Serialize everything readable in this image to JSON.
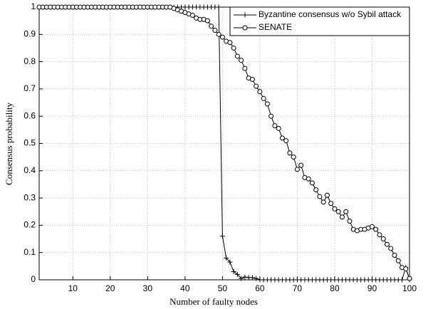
{
  "chart_data": {
    "type": "line",
    "xlabel": "Number of faulty nodes",
    "ylabel": "Consensus probability",
    "x": [
      1,
      2,
      3,
      4,
      5,
      6,
      7,
      8,
      9,
      10,
      11,
      12,
      13,
      14,
      15,
      16,
      17,
      18,
      19,
      20,
      21,
      22,
      23,
      24,
      25,
      26,
      27,
      28,
      29,
      30,
      31,
      32,
      33,
      34,
      35,
      36,
      37,
      38,
      39,
      40,
      41,
      42,
      43,
      44,
      45,
      46,
      47,
      48,
      49,
      50,
      51,
      52,
      53,
      54,
      55,
      56,
      57,
      58,
      59,
      60,
      61,
      62,
      63,
      64,
      65,
      66,
      67,
      68,
      69,
      70,
      71,
      72,
      73,
      74,
      75,
      76,
      77,
      78,
      79,
      80,
      81,
      82,
      83,
      84,
      85,
      86,
      87,
      88,
      89,
      90,
      91,
      92,
      93,
      94,
      95,
      96,
      97,
      98,
      99,
      100
    ],
    "series": [
      {
        "name": "Byzantine consensus w/o Sybil attack",
        "color": "#000000",
        "marker": "plus",
        "values": [
          1,
          1,
          1,
          1,
          1,
          1,
          1,
          1,
          1,
          1,
          1,
          1,
          1,
          1,
          1,
          1,
          1,
          1,
          1,
          1,
          1,
          1,
          1,
          1,
          1,
          1,
          1,
          1,
          1,
          1,
          1,
          1,
          1,
          1,
          1,
          1,
          1,
          1,
          1,
          1,
          1,
          1,
          1,
          1,
          1,
          1,
          1,
          1,
          1,
          0.16,
          0.08,
          0.065,
          0.03,
          0.02,
          0.005,
          0.01,
          0.008,
          0.008,
          0.005,
          0,
          0,
          0,
          0,
          0,
          0,
          0,
          0,
          0,
          0,
          0,
          0,
          0,
          0,
          0,
          0,
          0,
          0,
          0,
          0,
          0,
          0,
          0,
          0,
          0,
          0,
          0,
          0,
          0,
          0,
          0,
          0,
          0,
          0,
          0,
          0,
          0,
          0,
          0,
          0.045,
          0
        ]
      },
      {
        "name": "SENATE",
        "color": "#000000",
        "marker": "circle",
        "values": [
          1,
          1,
          1,
          1,
          1,
          1,
          1,
          1,
          1,
          1,
          1,
          1,
          1,
          1,
          1,
          1,
          1,
          1,
          1,
          1,
          1,
          1,
          1,
          1,
          1,
          1,
          1,
          1,
          1,
          1,
          1,
          1,
          1,
          1,
          1,
          1,
          0.995,
          0.99,
          0.985,
          0.98,
          0.975,
          0.97,
          0.96,
          0.955,
          0.955,
          0.95,
          0.93,
          0.915,
          0.9,
          0.89,
          0.875,
          0.87,
          0.85,
          0.82,
          0.805,
          0.775,
          0.74,
          0.735,
          0.71,
          0.69,
          0.665,
          0.645,
          0.6,
          0.565,
          0.555,
          0.52,
          0.51,
          0.465,
          0.45,
          0.405,
          0.42,
          0.375,
          0.37,
          0.355,
          0.33,
          0.305,
          0.285,
          0.31,
          0.28,
          0.26,
          0.25,
          0.23,
          0.25,
          0.215,
          0.185,
          0.18,
          0.185,
          0.185,
          0.19,
          0.195,
          0.185,
          0.165,
          0.15,
          0.13,
          0.115,
          0.09,
          0.07,
          0.045,
          0.04,
          0.005
        ]
      }
    ],
    "xlim": [
      1,
      100
    ],
    "ylim": [
      0,
      1
    ],
    "xticks": [
      10,
      20,
      30,
      40,
      50,
      60,
      70,
      80,
      90,
      100
    ],
    "yticks": [
      0,
      0.1,
      0.2,
      0.3,
      0.4,
      0.5,
      0.6,
      0.7,
      0.8,
      0.9,
      1
    ],
    "grid": true,
    "legend": "upper right"
  }
}
